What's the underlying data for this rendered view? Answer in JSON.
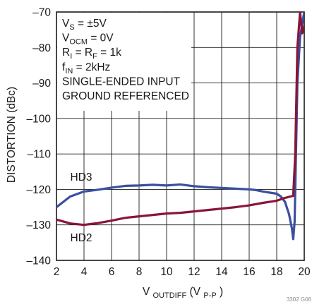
{
  "chart_data": {
    "type": "line",
    "xlabel_main": "V",
    "xlabel_sub": "OUTDIFF",
    "xlabel_unit_open": " (V",
    "xlabel_unit_sub": "P-P",
    "xlabel_unit_close": ")",
    "ylabel": "DISTORTION (dBc)",
    "xlim": [
      2,
      20
    ],
    "ylim": [
      -140,
      -70
    ],
    "x_ticks": [
      2,
      4,
      6,
      8,
      10,
      12,
      14,
      16,
      18,
      20
    ],
    "y_ticks": [
      -70,
      -80,
      -90,
      -100,
      -110,
      -120,
      -130,
      -140
    ],
    "x_tick_labels": [
      "2",
      "4",
      "6",
      "8",
      "10",
      "12",
      "14",
      "16",
      "18",
      "20"
    ],
    "y_tick_labels": [
      "–70",
      "–80",
      "–90",
      "–100",
      "–110",
      "–120",
      "–130",
      "–140"
    ],
    "grid": true,
    "conditions": [
      {
        "main": "V",
        "sub": "S",
        "rest": " = ±5V"
      },
      {
        "main": "V",
        "sub": "OCM",
        "rest": " = 0V"
      },
      {
        "main": "R",
        "sub": "I",
        "rest": " = R",
        "sub2": "F",
        "rest2": " = 1k"
      },
      {
        "main": "f",
        "sub": "IN",
        "rest": " = 2kHz"
      },
      {
        "main": "SINGLE-ENDED INPUT",
        "sub": "",
        "rest": ""
      },
      {
        "main": "GROUND REFERENCED",
        "sub": "",
        "rest": ""
      }
    ],
    "series": [
      {
        "name": "HD3",
        "color": "#3a4f9e",
        "x": [
          2,
          2.5,
          3,
          4,
          5,
          6,
          7,
          8,
          9,
          10,
          11,
          12,
          13,
          14,
          15,
          16,
          16.5,
          17,
          17.5,
          18,
          18.3,
          18.6,
          18.9,
          19.1,
          19.2,
          19.3,
          19.4,
          19.5,
          19.7,
          20
        ],
        "values": [
          -125.0,
          -123.5,
          -122.0,
          -120.6,
          -120.1,
          -119.5,
          -119.0,
          -118.9,
          -118.7,
          -118.9,
          -118.6,
          -119.1,
          -119.4,
          -119.6,
          -119.8,
          -120.0,
          -120.2,
          -120.6,
          -120.9,
          -121.2,
          -122.0,
          -123.5,
          -127.0,
          -131.0,
          -134.0,
          -129.0,
          -110.0,
          -90.0,
          -77.0,
          -70.0
        ]
      },
      {
        "name": "HD2",
        "color": "#8a1538",
        "x": [
          2,
          3,
          4,
          5,
          6,
          7,
          8,
          9,
          10,
          11,
          12,
          13,
          14,
          15,
          16,
          17,
          18,
          18.5,
          19,
          19.2,
          19.35,
          19.5,
          19.7,
          19.85,
          20
        ],
        "values": [
          -128.5,
          -129.6,
          -130.0,
          -129.5,
          -128.8,
          -128.0,
          -127.6,
          -127.2,
          -126.8,
          -126.6,
          -126.2,
          -125.8,
          -125.4,
          -125.0,
          -124.5,
          -123.8,
          -123.2,
          -122.5,
          -122.0,
          -121.8,
          -110.0,
          -80.0,
          -70.0,
          -76.0,
          -74.0
        ]
      }
    ],
    "figure_code": "3302 G06"
  }
}
